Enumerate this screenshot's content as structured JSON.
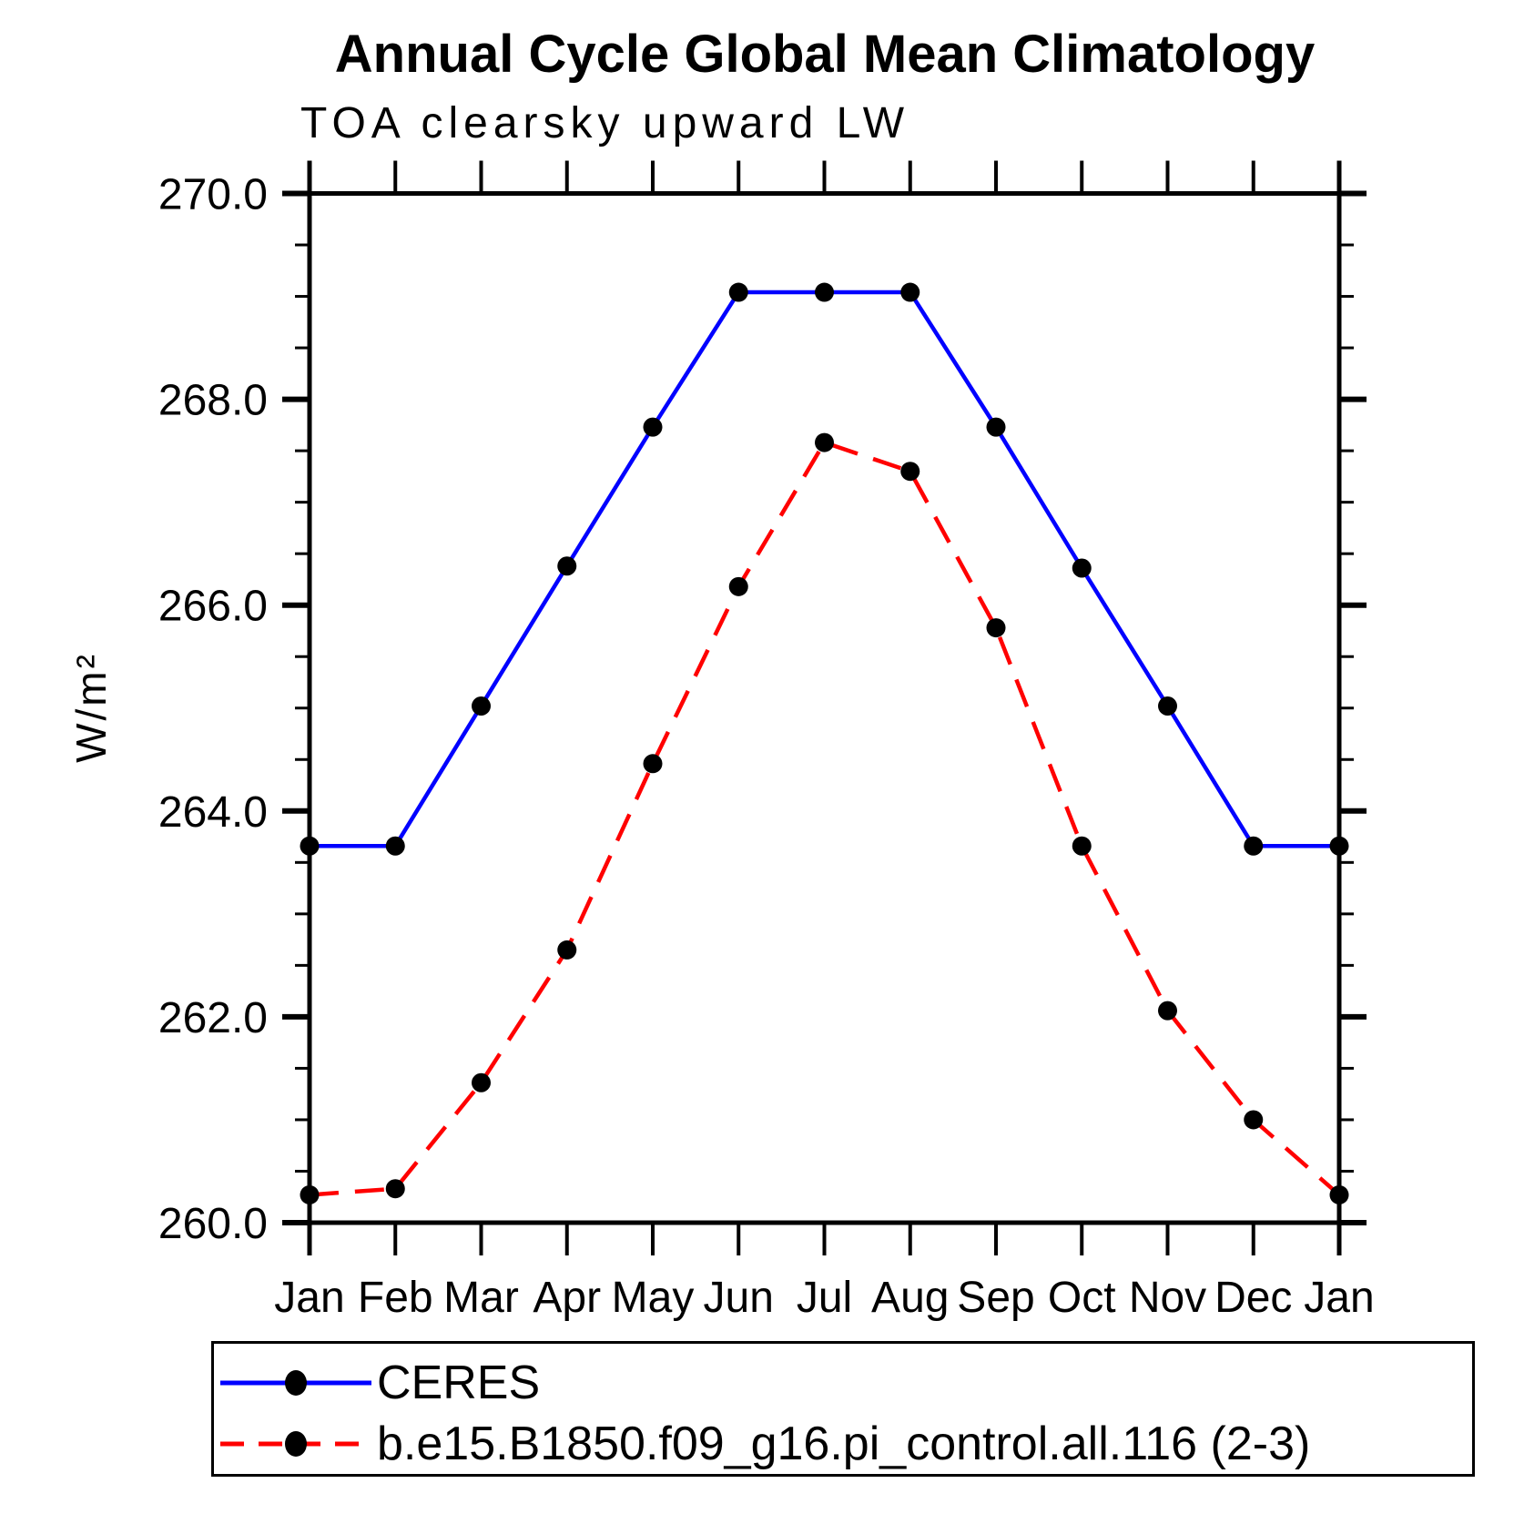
{
  "header": {
    "title": "Annual Cycle Global Mean Climatology",
    "subtitle": "TOA clearsky upward LW"
  },
  "axes": {
    "y_label": "W/m²",
    "y_tick_labels": [
      "270.0",
      "268.0",
      "266.0",
      "264.0",
      "262.0",
      "260.0"
    ],
    "y_minor_step": 0.5,
    "x_tick_labels": [
      "Jan",
      "Feb",
      "Mar",
      "Apr",
      "May",
      "Jun",
      "Jul",
      "Aug",
      "Sep",
      "Oct",
      "Nov",
      "Dec",
      "Jan"
    ]
  },
  "chart_data": {
    "type": "line",
    "title": "Annual Cycle Global Mean Climatology",
    "subtitle": "TOA clearsky upward LW",
    "xlabel": "",
    "ylabel": "W/m²",
    "ylim": [
      260.0,
      270.0
    ],
    "y_major_interval": 2.0,
    "y_minor_interval": 0.5,
    "grid": false,
    "legend_position": "bottom",
    "categories": [
      "Jan",
      "Feb",
      "Mar",
      "Apr",
      "May",
      "Jun",
      "Jul",
      "Aug",
      "Sep",
      "Oct",
      "Nov",
      "Dec",
      "Jan"
    ],
    "series": [
      {
        "name": "CERES",
        "line_style": "solid",
        "color": "#0000ff",
        "marker": "circle",
        "marker_color": "#000000",
        "values": [
          263.66,
          263.66,
          265.02,
          266.38,
          267.73,
          269.04,
          269.04,
          269.04,
          267.73,
          266.36,
          265.02,
          263.66,
          263.66
        ]
      },
      {
        "name": "b.e15.B1850.f09_g16.pi_control.all.116 (2-3)",
        "line_style": "dashed",
        "color": "#ff0000",
        "marker": "circle",
        "marker_color": "#000000",
        "values": [
          260.27,
          260.33,
          261.36,
          262.65,
          264.46,
          266.18,
          267.58,
          267.3,
          265.78,
          263.66,
          262.06,
          261.0,
          260.27
        ]
      }
    ]
  },
  "legend": {
    "entries": [
      {
        "label": "CERES"
      },
      {
        "label": "b.e15.B1850.f09_g16.pi_control.all.116 (2-3)"
      }
    ]
  },
  "colors": {
    "ceres_line": "#0000ff",
    "model_line": "#ff0000",
    "marker": "#000000",
    "axis": "#000000",
    "background": "#ffffff"
  }
}
